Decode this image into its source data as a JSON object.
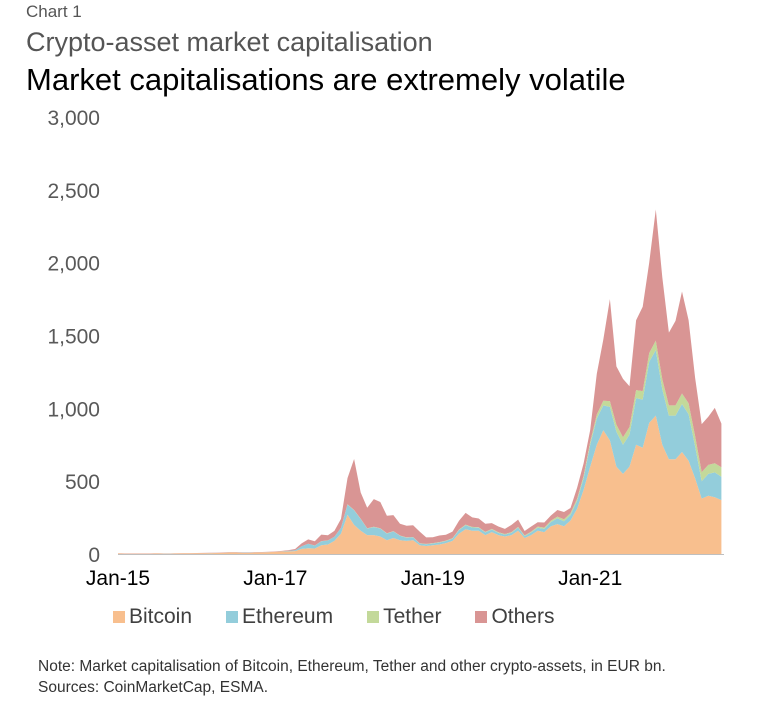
{
  "header": {
    "label": "Chart   1",
    "subtitle": "Crypto-asset market capitalisation",
    "title": "Market capitalisations are extremely volatile"
  },
  "chart_data": {
    "type": "area",
    "stacked": true,
    "title": "Market capitalisations are extremely volatile",
    "xlabel": "",
    "ylabel": "",
    "ylim": [
      0,
      3000
    ],
    "yticks": [
      "0",
      "500",
      "1,000",
      "1,500",
      "2,000",
      "2,500",
      "3,000"
    ],
    "xticks": [
      "Jan-15",
      "Jan-17",
      "Jan-19",
      "Jan-21"
    ],
    "x_start": "2015-01",
    "x_end": "2022-09",
    "x_frequency": "monthly",
    "grid": false,
    "legend": "bottom",
    "series": [
      {
        "name": "Bitcoin",
        "color": "#f8bf8e",
        "values": [
          4,
          3,
          3,
          3,
          3,
          3,
          4,
          3,
          3,
          4,
          5,
          5,
          6,
          6,
          6,
          7,
          8,
          10,
          10,
          9,
          9,
          10,
          11,
          13,
          15,
          17,
          18,
          20,
          35,
          40,
          38,
          60,
          65,
          90,
          140,
          270,
          200,
          160,
          130,
          130,
          120,
          95,
          110,
          95,
          90,
          95,
          60,
          55,
          60,
          65,
          75,
          90,
          140,
          170,
          160,
          160,
          130,
          150,
          130,
          120,
          130,
          160,
          110,
          130,
          160,
          150,
          190,
          205,
          190,
          230,
          310,
          440,
          600,
          750,
          850,
          780,
          600,
          550,
          600,
          750,
          730,
          900,
          950,
          750,
          650,
          650,
          700,
          640,
          520,
          380,
          400,
          390,
          370
        ]
      },
      {
        "name": "Ethereum",
        "color": "#93cddb",
        "values": [
          0,
          0,
          0,
          0,
          0,
          0,
          0,
          0.1,
          0.1,
          0.1,
          0.1,
          0.1,
          0.1,
          0.3,
          0.8,
          0.8,
          1,
          1.2,
          1,
          1,
          1,
          1,
          0.8,
          0.7,
          1,
          1.2,
          4,
          6,
          18,
          30,
          20,
          28,
          28,
          28,
          40,
          70,
          100,
          80,
          45,
          55,
          55,
          45,
          45,
          30,
          22,
          20,
          12,
          12,
          12,
          14,
          14,
          16,
          25,
          28,
          22,
          20,
          18,
          18,
          15,
          13,
          16,
          22,
          13,
          18,
          20,
          22,
          30,
          40,
          35,
          38,
          55,
          80,
          150,
          180,
          170,
          230,
          240,
          200,
          220,
          320,
          330,
          420,
          450,
          380,
          300,
          300,
          330,
          320,
          220,
          120,
          150,
          170,
          160
        ]
      },
      {
        "name": "Tether",
        "color": "#c3d99a",
        "values": [
          0,
          0,
          0,
          0,
          0,
          0,
          0,
          0,
          0,
          0,
          0,
          0,
          0,
          0,
          0,
          0,
          0,
          0,
          0,
          0,
          0,
          0,
          0,
          0,
          0,
          0,
          0,
          0,
          0.1,
          0.1,
          0.1,
          0.3,
          0.4,
          0.5,
          0.7,
          1,
          2,
          2,
          2,
          2,
          2,
          2,
          2,
          2,
          2,
          2,
          2,
          2,
          3,
          3,
          3,
          3,
          3,
          4,
          4,
          4,
          4,
          4,
          4,
          4,
          4,
          4,
          5,
          6,
          8,
          9,
          9,
          12,
          13,
          13,
          15,
          17,
          21,
          28,
          32,
          40,
          48,
          52,
          52,
          55,
          58,
          60,
          65,
          70,
          70,
          70,
          72,
          75,
          70,
          62,
          62,
          63,
          65
        ]
      },
      {
        "name": "Others",
        "color": "#d99594",
        "values": [
          1,
          1,
          1,
          1,
          1,
          1,
          1,
          1,
          1,
          1,
          1,
          1,
          1,
          1,
          2,
          2,
          2,
          2,
          2,
          2,
          2,
          2,
          2,
          2,
          2,
          3,
          5,
          8,
          20,
          30,
          30,
          45,
          35,
          40,
          60,
          180,
          350,
          180,
          140,
          190,
          180,
          120,
          110,
          80,
          80,
          80,
          80,
          45,
          40,
          45,
          40,
          45,
          60,
          80,
          65,
          60,
          55,
          40,
          40,
          35,
          50,
          50,
          30,
          35,
          30,
          35,
          35,
          45,
          50,
          35,
          75,
          85,
          80,
          280,
          420,
          700,
          400,
          400,
          280,
          480,
          580,
          620,
          900,
          700,
          500,
          580,
          700,
          570,
          400,
          330,
          330,
          380,
          300
        ]
      }
    ]
  },
  "note": {
    "text": "Note: Market capitalisation of Bitcoin, Ethereum, Tether and other crypto-assets, in EUR bn.",
    "sources": "Sources: CoinMarketCap, ESMA."
  }
}
